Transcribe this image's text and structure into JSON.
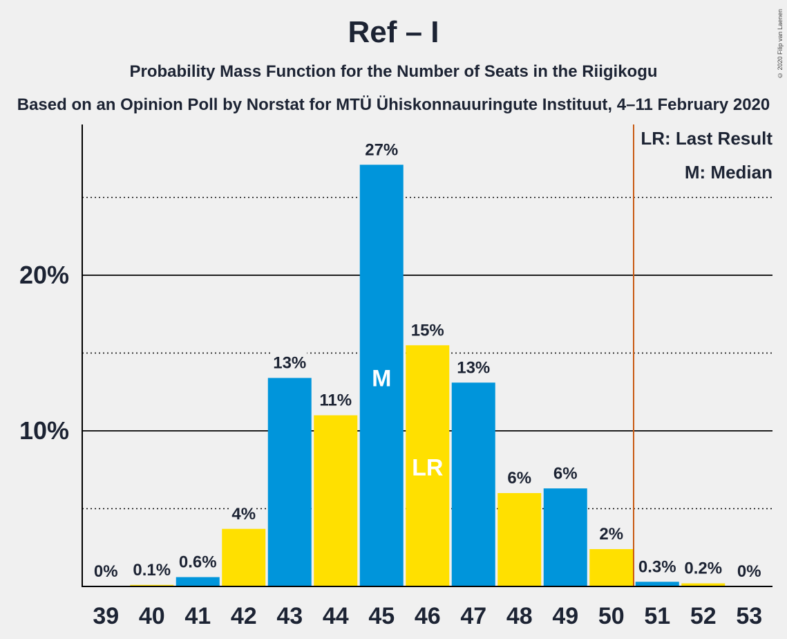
{
  "title": "Ref – I",
  "subtitle": "Probability Mass Function for the Number of Seats in the Riigikogu",
  "subsubtitle": "Based on an Opinion Poll by Norstat for MTÜ Ühiskonnauuringute Instituut, 4–11 February 2020",
  "copyright": "© 2020 Filip van Laenen",
  "legend": {
    "lr": "LR: Last Result",
    "m": "M: Median"
  },
  "colors": {
    "blue": "#0095db",
    "yellow": "#ffe000",
    "lastResultLine": "#c85a14",
    "axis": "#000000"
  },
  "chart_data": {
    "type": "bar",
    "categories": [
      "39",
      "40",
      "41",
      "42",
      "43",
      "44",
      "45",
      "46",
      "47",
      "48",
      "49",
      "50",
      "51",
      "52",
      "53"
    ],
    "values": [
      0,
      0.1,
      0.6,
      3.7,
      13.4,
      11.0,
      27.1,
      15.5,
      13.1,
      6.0,
      6.3,
      2.4,
      0.3,
      0.2,
      0
    ],
    "labels": [
      "0%",
      "0.1%",
      "0.6%",
      "4%",
      "13%",
      "11%",
      "27%",
      "15%",
      "13%",
      "6%",
      "6%",
      "2%",
      "0.3%",
      "0.2%",
      "0%"
    ],
    "bar_colors": [
      "blue",
      "yellow",
      "blue",
      "yellow",
      "blue",
      "yellow",
      "blue",
      "yellow",
      "blue",
      "yellow",
      "blue",
      "yellow",
      "blue",
      "yellow",
      "blue"
    ],
    "yticks": [
      {
        "value": 10,
        "label": "10%"
      },
      {
        "value": 20,
        "label": "20%"
      }
    ],
    "minor_gridlines": [
      5,
      15,
      25
    ],
    "ylim": [
      0,
      29.6
    ],
    "median": "45",
    "last_result": "46",
    "majority_line_after": "50",
    "bar_marks": [
      {
        "category": "45",
        "text": "M"
      },
      {
        "category": "46",
        "text": "LR"
      }
    ]
  }
}
